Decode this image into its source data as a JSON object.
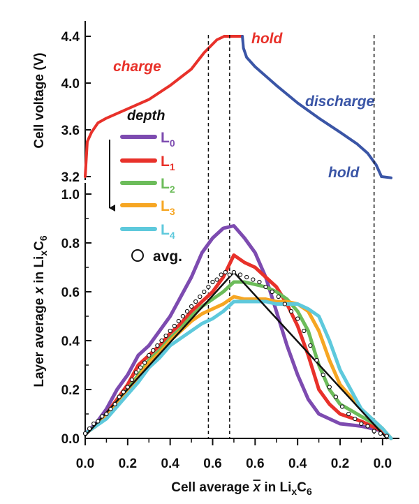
{
  "chart_data": [
    {
      "type": "line",
      "panel": "top",
      "ylabel": "Cell voltage (V)",
      "ylim": [
        3.1,
        4.45
      ],
      "yticks": [
        "3.2",
        "3.6",
        "4.0",
        "4.4"
      ],
      "x_axis": "shared progress axis; x̄ rises 0.0→0.7 during charge, held at 0.7, then falls 0.7→0.0 during discharge",
      "series": [
        {
          "name": "charge",
          "color": "#e8312a",
          "points": [
            [
              0.0,
              3.2
            ],
            [
              0.01,
              3.5
            ],
            [
              0.03,
              3.58
            ],
            [
              0.06,
              3.66
            ],
            [
              0.1,
              3.7
            ],
            [
              0.2,
              3.78
            ],
            [
              0.3,
              3.86
            ],
            [
              0.4,
              3.98
            ],
            [
              0.5,
              4.12
            ],
            [
              0.56,
              4.26
            ],
            [
              0.62,
              4.37
            ],
            [
              0.655,
              4.4
            ]
          ]
        },
        {
          "name": "hold",
          "color": "#e8312a",
          "points": [
            [
              0.655,
              4.4
            ],
            [
              0.74,
              4.4
            ]
          ]
        },
        {
          "name": "discharge",
          "color": "#3a55a6",
          "points": [
            [
              0.74,
              4.4
            ],
            [
              0.745,
              4.3
            ],
            [
              0.76,
              4.22
            ],
            [
              0.8,
              4.14
            ],
            [
              0.9,
              3.98
            ],
            [
              1.0,
              3.83
            ],
            [
              1.1,
              3.7
            ],
            [
              1.2,
              3.58
            ],
            [
              1.28,
              3.48
            ],
            [
              1.33,
              3.4
            ],
            [
              1.37,
              3.3
            ],
            [
              1.395,
              3.2
            ]
          ]
        },
        {
          "name": "hold",
          "color": "#3a55a6",
          "points": [
            [
              1.395,
              3.2
            ],
            [
              1.44,
              3.19
            ]
          ]
        }
      ],
      "annotations": [
        {
          "text": "charge",
          "color": "#e8312a"
        },
        {
          "text": "hold",
          "color": "#e8312a"
        },
        {
          "text": "discharge",
          "color": "#3a55a6"
        },
        {
          "text": "hold",
          "color": "#3a55a6"
        }
      ]
    },
    {
      "type": "line",
      "panel": "bottom",
      "ylabel_pre": "Layer average ",
      "ylabel_var": "x",
      "ylabel_mid": " in Li",
      "ylabel_sub1": "x",
      "ylabel_c": "C",
      "ylabel_sub2": "6",
      "ylim": [
        0.0,
        1.0
      ],
      "yticks": [
        "0.0",
        "0.2",
        "0.4",
        "0.6",
        "0.8",
        "1.0"
      ],
      "xlabel_pre": "Cell average ",
      "xlabel_var": "x",
      "xlabel_mid": " in Li",
      "xlabel_sub1": "x",
      "xlabel_c": "C",
      "xlabel_sub2": "6",
      "xticks": [
        "0.0",
        "0.2",
        "0.4",
        "0.6",
        "0.6",
        "0.4",
        "0.2",
        "0.0"
      ],
      "xtick_progress": [
        0.0,
        0.2,
        0.4,
        0.6,
        0.8,
        1.0,
        1.2,
        1.4
      ],
      "legend": {
        "title": "depth",
        "entries": [
          {
            "base": "L",
            "sub": "0",
            "color": "#7d4bb0"
          },
          {
            "base": "L",
            "sub": "1",
            "color": "#e8312a"
          },
          {
            "base": "L",
            "sub": "2",
            "color": "#6cbc5a"
          },
          {
            "base": "L",
            "sub": "3",
            "color": "#f6a623"
          },
          {
            "base": "L",
            "sub": "4",
            "color": "#5ec9dc"
          }
        ],
        "avg_label": "avg."
      },
      "series": [
        {
          "name": "L0",
          "color": "#7d4bb0",
          "points": [
            [
              0.0,
              0.02
            ],
            [
              0.05,
              0.06
            ],
            [
              0.1,
              0.12
            ],
            [
              0.15,
              0.2
            ],
            [
              0.2,
              0.26
            ],
            [
              0.25,
              0.34
            ],
            [
              0.3,
              0.38
            ],
            [
              0.35,
              0.44
            ],
            [
              0.4,
              0.5
            ],
            [
              0.45,
              0.58
            ],
            [
              0.5,
              0.66
            ],
            [
              0.55,
              0.76
            ],
            [
              0.6,
              0.82
            ],
            [
              0.65,
              0.86
            ],
            [
              0.7,
              0.87
            ],
            [
              0.75,
              0.82
            ],
            [
              0.8,
              0.76
            ],
            [
              0.85,
              0.66
            ],
            [
              0.9,
              0.52
            ],
            [
              0.95,
              0.38
            ],
            [
              1.0,
              0.26
            ],
            [
              1.05,
              0.16
            ],
            [
              1.1,
              0.1
            ],
            [
              1.2,
              0.06
            ],
            [
              1.3,
              0.05
            ],
            [
              1.4,
              0.03
            ],
            [
              1.44,
              0.0
            ]
          ]
        },
        {
          "name": "L1",
          "color": "#e8312a",
          "points": [
            [
              0.0,
              0.02
            ],
            [
              0.05,
              0.05
            ],
            [
              0.1,
              0.1
            ],
            [
              0.15,
              0.16
            ],
            [
              0.2,
              0.22
            ],
            [
              0.25,
              0.3
            ],
            [
              0.3,
              0.34
            ],
            [
              0.35,
              0.38
            ],
            [
              0.4,
              0.43
            ],
            [
              0.45,
              0.47
            ],
            [
              0.5,
              0.52
            ],
            [
              0.55,
              0.56
            ],
            [
              0.6,
              0.6
            ],
            [
              0.65,
              0.66
            ],
            [
              0.7,
              0.75
            ],
            [
              0.75,
              0.72
            ],
            [
              0.8,
              0.7
            ],
            [
              0.85,
              0.66
            ],
            [
              0.9,
              0.62
            ],
            [
              0.95,
              0.55
            ],
            [
              1.0,
              0.46
            ],
            [
              1.05,
              0.34
            ],
            [
              1.1,
              0.2
            ],
            [
              1.15,
              0.14
            ],
            [
              1.2,
              0.1
            ],
            [
              1.3,
              0.07
            ],
            [
              1.4,
              0.03
            ],
            [
              1.44,
              0.0
            ]
          ]
        },
        {
          "name": "L2",
          "color": "#6cbc5a",
          "points": [
            [
              0.0,
              0.02
            ],
            [
              0.05,
              0.05
            ],
            [
              0.1,
              0.09
            ],
            [
              0.15,
              0.15
            ],
            [
              0.2,
              0.2
            ],
            [
              0.25,
              0.26
            ],
            [
              0.3,
              0.32
            ],
            [
              0.35,
              0.36
            ],
            [
              0.4,
              0.41
            ],
            [
              0.45,
              0.45
            ],
            [
              0.5,
              0.5
            ],
            [
              0.55,
              0.54
            ],
            [
              0.6,
              0.57
            ],
            [
              0.65,
              0.6
            ],
            [
              0.7,
              0.64
            ],
            [
              0.75,
              0.64
            ],
            [
              0.8,
              0.63
            ],
            [
              0.85,
              0.62
            ],
            [
              0.9,
              0.6
            ],
            [
              0.95,
              0.57
            ],
            [
              1.0,
              0.52
            ],
            [
              1.05,
              0.44
            ],
            [
              1.1,
              0.3
            ],
            [
              1.15,
              0.2
            ],
            [
              1.2,
              0.14
            ],
            [
              1.3,
              0.09
            ],
            [
              1.4,
              0.04
            ],
            [
              1.44,
              0.0
            ]
          ]
        },
        {
          "name": "L3",
          "color": "#f6a623",
          "points": [
            [
              0.0,
              0.02
            ],
            [
              0.05,
              0.05
            ],
            [
              0.1,
              0.09
            ],
            [
              0.15,
              0.14
            ],
            [
              0.2,
              0.19
            ],
            [
              0.25,
              0.25
            ],
            [
              0.3,
              0.31
            ],
            [
              0.35,
              0.35
            ],
            [
              0.4,
              0.4
            ],
            [
              0.45,
              0.44
            ],
            [
              0.5,
              0.48
            ],
            [
              0.55,
              0.51
            ],
            [
              0.6,
              0.53
            ],
            [
              0.65,
              0.55
            ],
            [
              0.7,
              0.58
            ],
            [
              0.75,
              0.57
            ],
            [
              0.8,
              0.57
            ],
            [
              0.85,
              0.57
            ],
            [
              0.9,
              0.56
            ],
            [
              0.95,
              0.56
            ],
            [
              1.0,
              0.55
            ],
            [
              1.05,
              0.52
            ],
            [
              1.1,
              0.44
            ],
            [
              1.15,
              0.32
            ],
            [
              1.2,
              0.22
            ],
            [
              1.3,
              0.12
            ],
            [
              1.4,
              0.04
            ],
            [
              1.44,
              0.0
            ]
          ]
        },
        {
          "name": "L4",
          "color": "#5ec9dc",
          "points": [
            [
              0.0,
              0.02
            ],
            [
              0.05,
              0.05
            ],
            [
              0.1,
              0.08
            ],
            [
              0.15,
              0.13
            ],
            [
              0.2,
              0.18
            ],
            [
              0.25,
              0.23
            ],
            [
              0.3,
              0.29
            ],
            [
              0.35,
              0.33
            ],
            [
              0.4,
              0.38
            ],
            [
              0.45,
              0.41
            ],
            [
              0.5,
              0.44
            ],
            [
              0.55,
              0.47
            ],
            [
              0.6,
              0.49
            ],
            [
              0.65,
              0.52
            ],
            [
              0.7,
              0.56
            ],
            [
              0.75,
              0.56
            ],
            [
              0.8,
              0.56
            ],
            [
              0.85,
              0.56
            ],
            [
              0.9,
              0.55
            ],
            [
              0.95,
              0.55
            ],
            [
              1.0,
              0.55
            ],
            [
              1.05,
              0.53
            ],
            [
              1.1,
              0.5
            ],
            [
              1.15,
              0.4
            ],
            [
              1.2,
              0.28
            ],
            [
              1.25,
              0.2
            ],
            [
              1.3,
              0.12
            ],
            [
              1.4,
              0.04
            ],
            [
              1.44,
              0.0
            ]
          ]
        },
        {
          "name": "avg.",
          "style": "open-circles",
          "color": "#111111",
          "points": [
            [
              0.0,
              0.02
            ],
            [
              0.02,
              0.04
            ],
            [
              0.04,
              0.06
            ],
            [
              0.06,
              0.07
            ],
            [
              0.08,
              0.09
            ],
            [
              0.1,
              0.1
            ],
            [
              0.12,
              0.12
            ],
            [
              0.14,
              0.14
            ],
            [
              0.16,
              0.17
            ],
            [
              0.18,
              0.19
            ],
            [
              0.2,
              0.21
            ],
            [
              0.22,
              0.24
            ],
            [
              0.24,
              0.27
            ],
            [
              0.26,
              0.29
            ],
            [
              0.28,
              0.31
            ],
            [
              0.3,
              0.34
            ],
            [
              0.32,
              0.36
            ],
            [
              0.34,
              0.38
            ],
            [
              0.36,
              0.4
            ],
            [
              0.38,
              0.42
            ],
            [
              0.4,
              0.44
            ],
            [
              0.42,
              0.46
            ],
            [
              0.44,
              0.48
            ],
            [
              0.46,
              0.5
            ],
            [
              0.48,
              0.52
            ],
            [
              0.5,
              0.54
            ],
            [
              0.52,
              0.56
            ],
            [
              0.54,
              0.58
            ],
            [
              0.56,
              0.6
            ],
            [
              0.58,
              0.62
            ],
            [
              0.6,
              0.64
            ],
            [
              0.62,
              0.65
            ],
            [
              0.64,
              0.67
            ],
            [
              0.66,
              0.68
            ],
            [
              0.68,
              0.67
            ],
            [
              0.7,
              0.68
            ],
            [
              0.73,
              0.67
            ],
            [
              0.76,
              0.66
            ],
            [
              0.79,
              0.65
            ],
            [
              0.82,
              0.64
            ],
            [
              0.85,
              0.62
            ],
            [
              0.88,
              0.6
            ],
            [
              0.91,
              0.58
            ],
            [
              0.94,
              0.55
            ],
            [
              0.97,
              0.52
            ],
            [
              1.0,
              0.49
            ],
            [
              1.03,
              0.44
            ],
            [
              1.06,
              0.38
            ],
            [
              1.09,
              0.32
            ],
            [
              1.12,
              0.26
            ],
            [
              1.15,
              0.21
            ],
            [
              1.18,
              0.17
            ],
            [
              1.21,
              0.13
            ],
            [
              1.24,
              0.1
            ],
            [
              1.27,
              0.08
            ],
            [
              1.3,
              0.06
            ],
            [
              1.33,
              0.05
            ],
            [
              1.36,
              0.03
            ],
            [
              1.39,
              0.02
            ],
            [
              1.42,
              0.01
            ]
          ]
        },
        {
          "name": "ideal",
          "color": "#111111",
          "points": [
            [
              0.0,
              0.01
            ],
            [
              0.7,
              0.68
            ],
            [
              1.42,
              0.0
            ]
          ]
        }
      ],
      "reference_lines_x": [
        0.58,
        0.68,
        1.36
      ]
    }
  ]
}
